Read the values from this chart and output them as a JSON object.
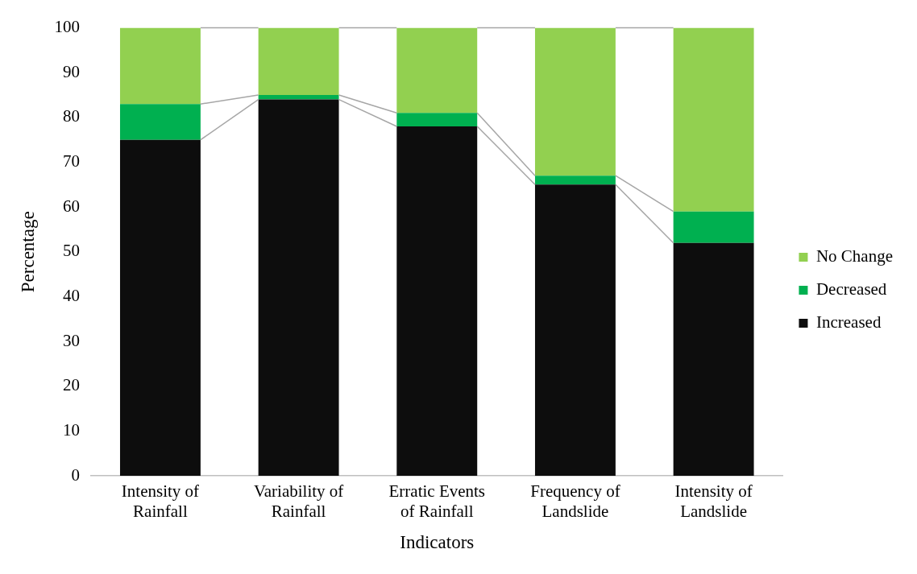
{
  "chart_data": {
    "type": "bar",
    "stacked": true,
    "xlabel": "Indicators",
    "ylabel": "Percentage",
    "categories": [
      "Intensity of Rainfall",
      "Variability of Rainfall",
      "Erratic Events of Rainfall",
      "Frequency of Landslide",
      "Intensity of Landslide"
    ],
    "series": [
      {
        "name": "Increased",
        "color": "#0d0d0d",
        "values": [
          75,
          84,
          78,
          65,
          52
        ]
      },
      {
        "name": "Decreased",
        "color": "#00b050",
        "values": [
          8,
          1,
          3,
          2,
          7
        ]
      },
      {
        "name": "No Change",
        "color": "#92d050",
        "values": [
          17,
          15,
          19,
          33,
          41
        ]
      }
    ],
    "ylim": [
      0,
      100
    ],
    "yticks": [
      0,
      10,
      20,
      30,
      40,
      50,
      60,
      70,
      80,
      90,
      100
    ],
    "grid": false,
    "legend": "right"
  }
}
